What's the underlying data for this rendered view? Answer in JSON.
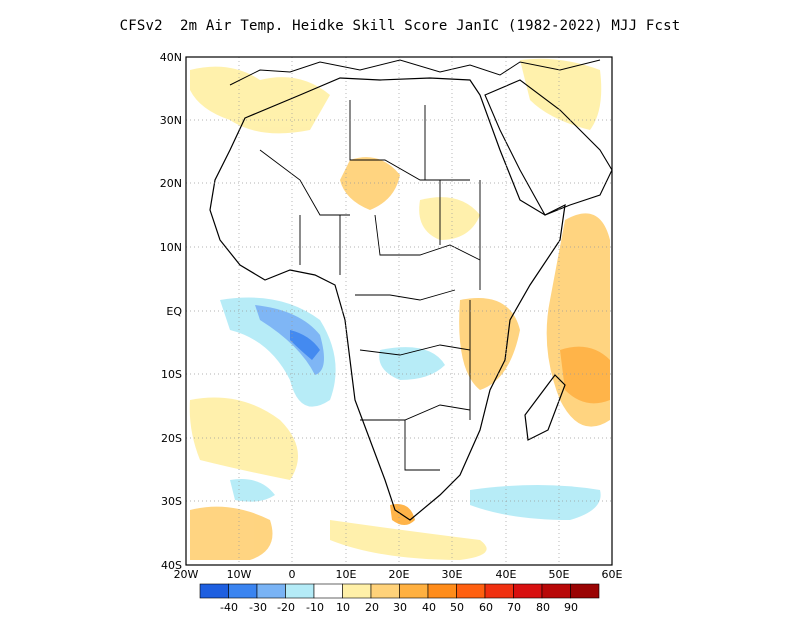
{
  "title": "CFSv2  2m Air Temp. Heidke Skill Score JanIC (1982-2022) MJJ Fcst",
  "map": {
    "lat_labels": [
      "40N",
      "30N",
      "20N",
      "10N",
      "EQ",
      "10S",
      "20S",
      "30S",
      "40S"
    ],
    "lon_labels": [
      "20W",
      "10W",
      "0",
      "10E",
      "20E",
      "30E",
      "40E",
      "50E",
      "60E"
    ],
    "lon_range": [
      -20,
      60
    ],
    "lat_range": [
      -40,
      40
    ],
    "grid": "dotted"
  },
  "colorbar": {
    "labels": [
      "-40",
      "-30",
      "-20",
      "-10",
      "10",
      "20",
      "30",
      "40",
      "50",
      "60",
      "70",
      "80",
      "90"
    ],
    "colors": [
      "#1e5fe0",
      "#3a84f0",
      "#79b3f5",
      "#b4ebf7",
      "#ffffff",
      "#fff0a8",
      "#ffd27a",
      "#ffb040",
      "#ff8c1a",
      "#ff6010",
      "#f03010",
      "#d81010",
      "#b80808",
      "#9a0404"
    ]
  }
}
